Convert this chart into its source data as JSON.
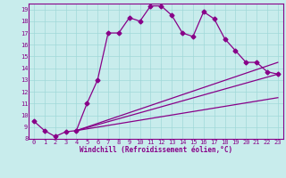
{
  "title": "",
  "xlabel": "Windchill (Refroidissement éolien,°C)",
  "ylabel": "",
  "background_color": "#c8ecec",
  "line_color": "#880088",
  "grid_color": "#a0d8d8",
  "xlim": [
    -0.5,
    23.5
  ],
  "ylim": [
    8,
    19.5
  ],
  "xticks": [
    0,
    1,
    2,
    3,
    4,
    5,
    6,
    7,
    8,
    9,
    10,
    11,
    12,
    13,
    14,
    15,
    16,
    17,
    18,
    19,
    20,
    21,
    22,
    23
  ],
  "yticks": [
    8,
    9,
    10,
    11,
    12,
    13,
    14,
    15,
    16,
    17,
    18,
    19
  ],
  "curve1_x": [
    0,
    1,
    2,
    3,
    4,
    5,
    6,
    7,
    8,
    9,
    10,
    11,
    12,
    13,
    14,
    15,
    16,
    17,
    18,
    19,
    20,
    21,
    22,
    23
  ],
  "curve1_y": [
    9.5,
    8.7,
    8.2,
    8.6,
    8.7,
    11.0,
    13.0,
    17.0,
    17.0,
    18.3,
    18.0,
    19.3,
    19.3,
    18.5,
    17.0,
    16.7,
    18.8,
    18.2,
    16.5,
    15.5,
    14.5,
    14.5,
    13.7,
    13.5
  ],
  "curve2_x": [
    4,
    23
  ],
  "curve2_y": [
    8.7,
    14.5
  ],
  "curve3_x": [
    4,
    23
  ],
  "curve3_y": [
    8.7,
    13.5
  ],
  "curve4_x": [
    4,
    23
  ],
  "curve4_y": [
    8.7,
    11.5
  ],
  "marker_style": "D",
  "marker_size": 2.5,
  "line_width": 0.9,
  "xlabel_fontsize": 5.5,
  "tick_fontsize": 5.0
}
